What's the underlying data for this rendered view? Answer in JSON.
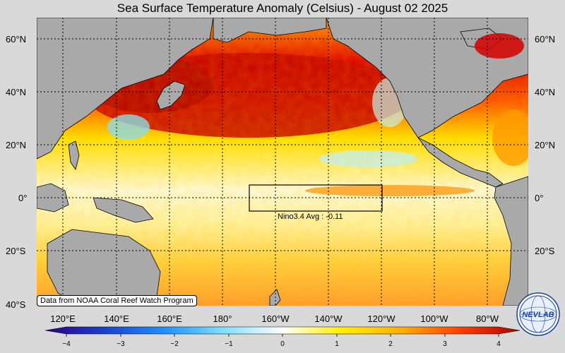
{
  "title": "Sea Surface Temperature Anomaly (Celsius) - August 02 2025",
  "credit": "Data from NOAA Coral Reef Watch Program",
  "nino_box_label": "Nino3.4 Avg : -0.11",
  "logo_text": "NEVLAB",
  "latitude_labels": [
    "60°N",
    "40°N",
    "20°N",
    "0°",
    "20°S",
    "40°S"
  ],
  "longitude_labels": [
    "120°E",
    "140°E",
    "160°E",
    "180°",
    "160°W",
    "140°W",
    "120°W",
    "100°W",
    "80°W"
  ],
  "colorbar": {
    "ticks": [
      "−4",
      "−3",
      "−2",
      "−1",
      "0",
      "1",
      "2",
      "3",
      "4"
    ],
    "colors": [
      "#2a007f",
      "#1a3fd0",
      "#1e90ff",
      "#7fdfff",
      "#ffffff",
      "#ffee00",
      "#ffb000",
      "#ff4000",
      "#b00000"
    ]
  },
  "colors": {
    "land": "#a9a9a9",
    "coastline": "#000000",
    "background": "#d9d9d9",
    "warm": "#d60000",
    "cool": "#7fdfff"
  }
}
